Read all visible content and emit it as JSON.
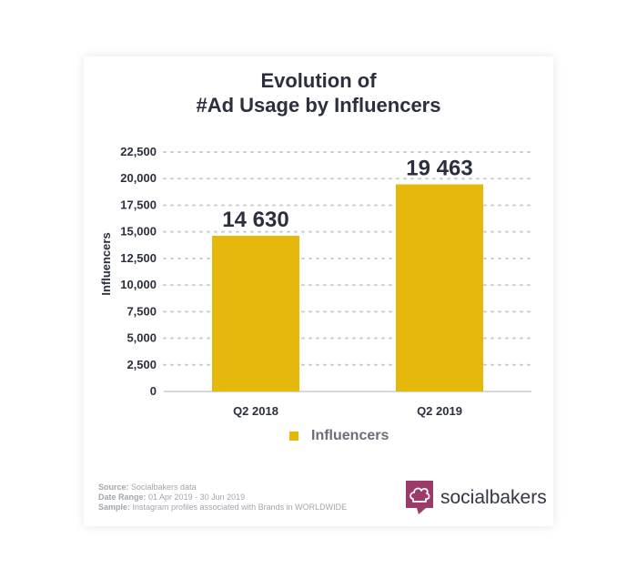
{
  "title": {
    "line1": "Evolution of",
    "line2": "#Ad Usage by Influencers"
  },
  "chart_data": {
    "type": "bar",
    "categories": [
      "Q2 2018",
      "Q2 2019"
    ],
    "series": [
      {
        "name": "Influencers",
        "values": [
          14630,
          19463
        ]
      }
    ],
    "data_labels": [
      "14 630",
      "19 463"
    ],
    "ylabel": "Influencers",
    "xlabel": "",
    "ylim": [
      0,
      22500
    ],
    "yticks": [
      0,
      2500,
      5000,
      7500,
      10000,
      12500,
      15000,
      17500,
      20000,
      22500
    ],
    "ytick_labels": [
      "0",
      "2,500",
      "5,000",
      "7,500",
      "10,000",
      "12,500",
      "15,000",
      "17,500",
      "20,000",
      "22,500"
    ],
    "grid": true,
    "legend": "bottom",
    "bar_color": "#e6b80c"
  },
  "legend": {
    "label": "Influencers"
  },
  "footer": {
    "source_label": "Source:",
    "source_value": "Socialbakers data",
    "range_label": "Date Range:",
    "range_value": "01 Apr 2019 - 30 Jun 2019",
    "sample_label": "Sample:",
    "sample_value": "Instagram profiles associated with Brands in WORLDWIDE"
  },
  "brand": {
    "name": "socialbakers",
    "logo_icon": "chef-hat-speech-bubble-icon",
    "logo_color": "#9b3b6a"
  }
}
